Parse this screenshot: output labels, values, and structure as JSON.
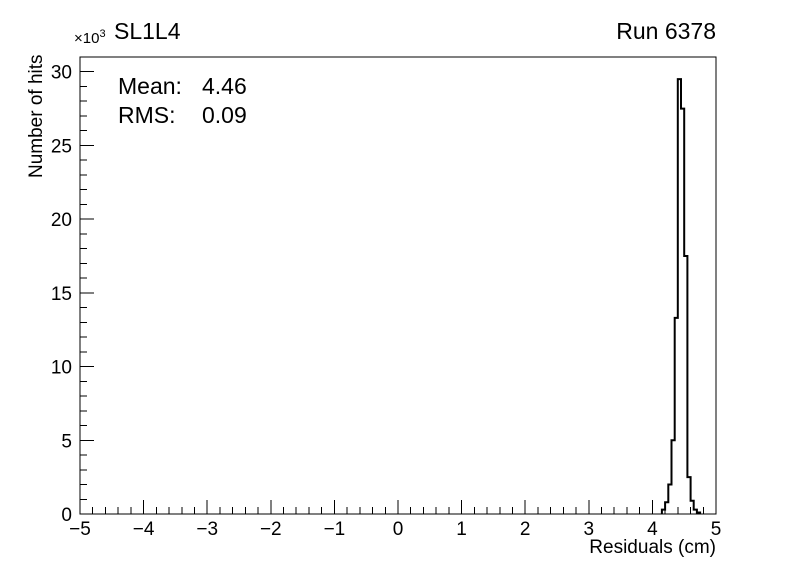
{
  "chart_data": {
    "type": "bar",
    "render_style": "root-step-histogram",
    "title": "SL1L4",
    "run_label": "Run 6378",
    "xlabel": "Residuals (cm)",
    "ylabel": "Number of hits",
    "y_scale_prefix": "×10",
    "y_scale_exponent": "3",
    "xlim": [
      -5,
      5
    ],
    "ylim": [
      0,
      31
    ],
    "x_major_ticks": [
      -5,
      -4,
      -3,
      -2,
      -1,
      0,
      1,
      2,
      3,
      4,
      5
    ],
    "x_tick_labels": [
      "−5",
      "−4",
      "−3",
      "−2",
      "−1",
      "0",
      "1",
      "2",
      "3",
      "4",
      "5"
    ],
    "x_minor_step": 0.2,
    "y_major_ticks": [
      0,
      5,
      10,
      15,
      20,
      25,
      30
    ],
    "y_tick_labels": [
      "0",
      "5",
      "10",
      "15",
      "20",
      "25",
      "30"
    ],
    "y_minor_step": 1,
    "grid": false,
    "line_color": "#000000",
    "stats": {
      "mean_label": "Mean:",
      "mean_value": "4.46",
      "rms_label": "RMS:",
      "rms_value": "0.09"
    },
    "histogram": {
      "units": "thousands of hits",
      "bin_start": 4.15,
      "bin_width": 0.05,
      "values": [
        0.3,
        0.8,
        2.0,
        5.0,
        13.3,
        29.5,
        27.5,
        17.5,
        2.5,
        0.9,
        0.3,
        0.1
      ]
    }
  }
}
